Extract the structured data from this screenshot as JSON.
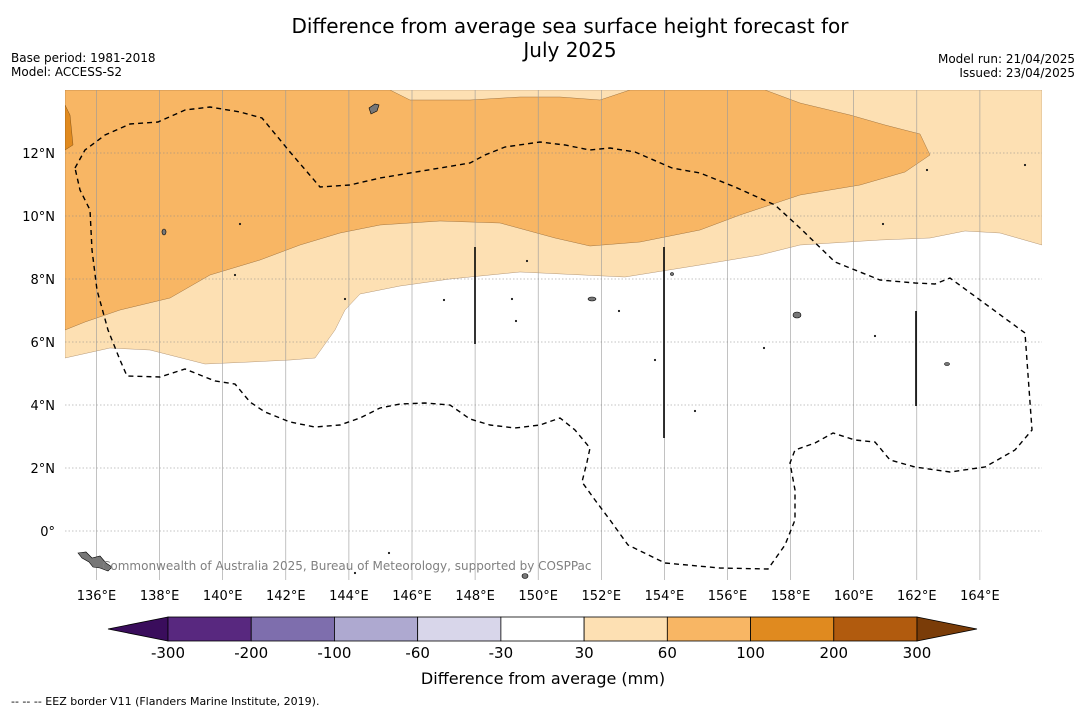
{
  "title": {
    "line1": "Difference from average sea surface height forecast for",
    "line2": "July 2025"
  },
  "meta": {
    "base_period": "Base period: 1981-2018",
    "model": "Model: ACCESS-S2",
    "model_run": "Model run: 21/04/2025",
    "issued": "Issued: 23/04/2025"
  },
  "map": {
    "lon_labels": [
      "136°E",
      "138°E",
      "140°E",
      "142°E",
      "144°E",
      "146°E",
      "148°E",
      "150°E",
      "152°E",
      "154°E",
      "156°E",
      "158°E",
      "160°E",
      "162°E",
      "164°E"
    ],
    "lat_labels": [
      "12°N",
      "10°N",
      "8°N",
      "6°N",
      "4°N",
      "2°N",
      "0°"
    ],
    "copyright": "Commonwealth of Australia 2025, Bureau of Meteorology, supported by COSPPac",
    "eez_border_style": "dashed-black"
  },
  "colorbar": {
    "label": "Difference from average (mm)",
    "ticks": [
      "-300",
      "-200",
      "-100",
      "-60",
      "-30",
      "30",
      "60",
      "100",
      "200",
      "300"
    ],
    "colors": [
      "#3a0d5c",
      "#58287f",
      "#7e6ead",
      "#aea9d0",
      "#d8d6ea",
      "#ffffff",
      "#fde0b3",
      "#f8b664",
      "#e08a1f",
      "#b15b0e",
      "#7a3c08"
    ]
  },
  "footnote": "--  --  -- EEZ border V11 (Flanders Marine Institute, 2019)."
}
